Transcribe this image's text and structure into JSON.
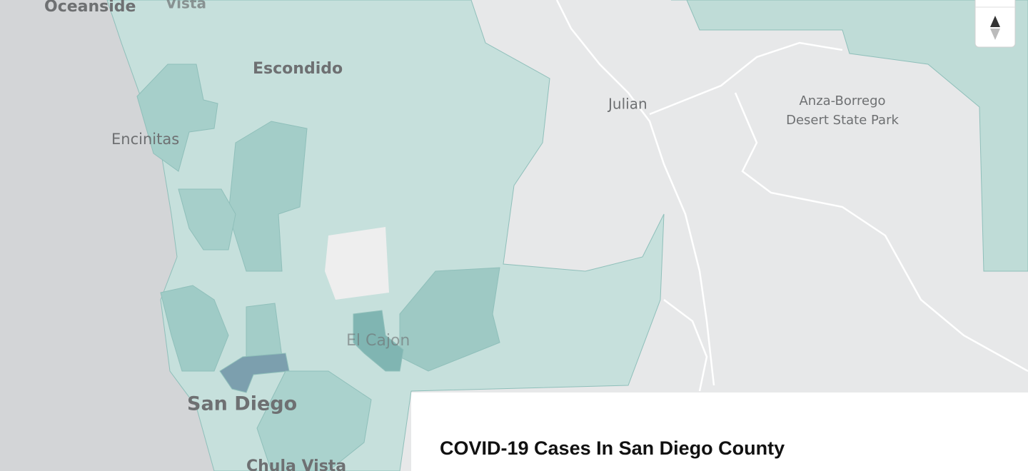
{
  "map": {
    "places": {
      "oceanside": "Oceanside",
      "vista": "Vista",
      "escondido": "Escondido",
      "encinitas": "Encinitas",
      "julian": "Julian",
      "park_line1": "Anza-Borrego",
      "park_line2": "Desert State Park",
      "el_cajon": "El Cajon",
      "san_diego": "San Diego",
      "chula_vista": "Chula Vista"
    }
  },
  "panel": {
    "title": "COVID-19 Cases In San Diego County"
  }
}
